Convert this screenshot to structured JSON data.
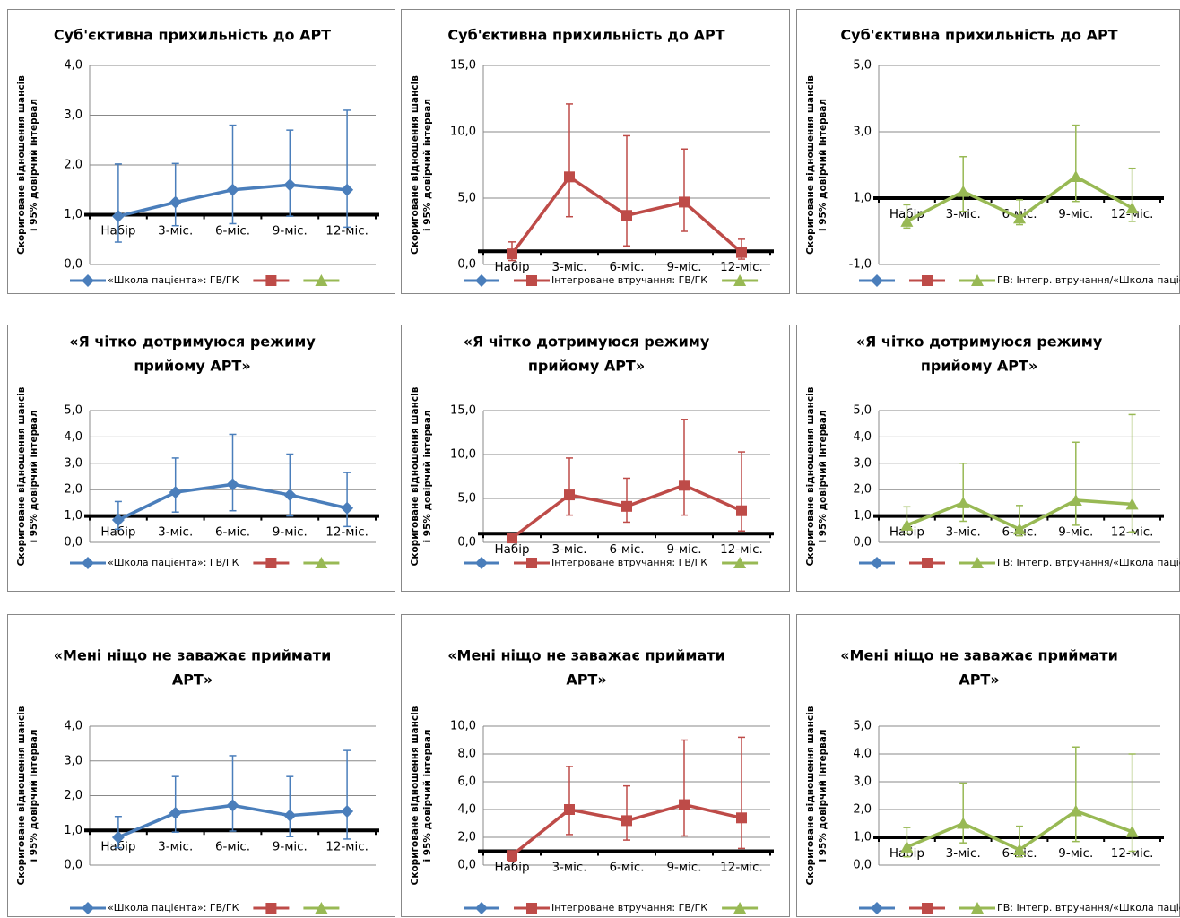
{
  "chart_data": [
    {
      "type": "line",
      "title": [
        "Суб'єктивна прихильність до АРТ"
      ],
      "y_label": [
        "Скориговане відношення шансів",
        "і 95% довірчий інтервал"
      ],
      "categories": [
        "Набір",
        "3-міс.",
        "6-міс.",
        "9-міс.",
        "12-міс."
      ],
      "ylim": [
        0,
        4
      ],
      "yticks": [
        {
          "value": 0,
          "label": "0,0"
        },
        {
          "value": 1,
          "label": "1,0"
        },
        {
          "value": 2,
          "label": "2,0"
        },
        {
          "value": 3,
          "label": "3,0"
        },
        {
          "value": 4,
          "label": "4,0"
        }
      ],
      "reference_line": 1,
      "grid": true,
      "series": [
        {
          "name": "«Школа пацієнта»: ГВ/ГК",
          "color": "#4a7ebb",
          "marker": "diamond",
          "values": [
            0.97,
            1.25,
            1.5,
            1.6,
            1.5
          ],
          "error_low": [
            0.45,
            0.78,
            0.82,
            0.97,
            0.75
          ],
          "error_high": [
            2.02,
            2.03,
            2.8,
            2.7,
            3.1
          ]
        },
        {
          "name": null,
          "color": "#be4b48",
          "marker": "square",
          "values": [
            null,
            null,
            null,
            null,
            null
          ]
        },
        {
          "name": null,
          "color": "#98b954",
          "marker": "triangle",
          "values": [
            null,
            null,
            null,
            null,
            null
          ]
        }
      ]
    },
    {
      "type": "line",
      "title": [
        "Суб'єктивна прихильність до АРТ"
      ],
      "y_label": [
        "Скориговане відношення шансів",
        "і 95% довірчий інтервал"
      ],
      "categories": [
        "Набір",
        "3-міс.",
        "6-міс.",
        "9-міс.",
        "12-міс."
      ],
      "ylim": [
        0,
        15
      ],
      "yticks": [
        {
          "value": 0,
          "label": "0,0"
        },
        {
          "value": 5,
          "label": "5,0"
        },
        {
          "value": 10,
          "label": "10,0"
        },
        {
          "value": 15,
          "label": "15,0"
        }
      ],
      "reference_line": 1,
      "grid": true,
      "series": [
        {
          "name": null,
          "color": "#4a7ebb",
          "marker": "diamond",
          "values": [
            null,
            null,
            null,
            null,
            null
          ]
        },
        {
          "name": "Інтегроване втручання: ГВ/ГК",
          "color": "#be4b48",
          "marker": "square",
          "values": [
            0.8,
            6.6,
            3.7,
            4.7,
            0.9
          ],
          "error_low": [
            0.3,
            3.6,
            1.4,
            2.5,
            0.4
          ],
          "error_high": [
            1.7,
            12.1,
            9.7,
            8.7,
            1.9
          ]
        },
        {
          "name": null,
          "color": "#98b954",
          "marker": "triangle",
          "values": [
            null,
            null,
            null,
            null,
            null
          ]
        }
      ]
    },
    {
      "type": "line",
      "title": [
        "Суб'єктивна прихильність до АРТ"
      ],
      "y_label": [
        "Скориговане відношення шансів",
        "і 95% довірчий інтервал"
      ],
      "categories": [
        "Набір",
        "3-міс.",
        "6-міс.",
        "9-міс.",
        "12-міс."
      ],
      "ylim": [
        -1,
        5
      ],
      "yticks": [
        {
          "value": -1,
          "label": "-1,0"
        },
        {
          "value": 1,
          "label": "1,0"
        },
        {
          "value": 3,
          "label": "3,0"
        },
        {
          "value": 5,
          "label": "5,0"
        }
      ],
      "reference_line": 1,
      "grid": true,
      "series": [
        {
          "name": null,
          "color": "#4a7ebb",
          "marker": "diamond",
          "values": [
            null,
            null,
            null,
            null,
            null
          ]
        },
        {
          "name": null,
          "color": "#be4b48",
          "marker": "square",
          "values": [
            null,
            null,
            null,
            null,
            null
          ]
        },
        {
          "name": "ГВ: Інтегр. втручання/«Школа пацієнта»",
          "color": "#98b954",
          "marker": "triangle",
          "values": [
            0.3,
            1.2,
            0.4,
            1.65,
            0.7
          ],
          "error_low": [
            0.1,
            0.6,
            0.2,
            0.9,
            0.3
          ],
          "error_high": [
            0.8,
            2.25,
            0.95,
            3.2,
            1.9
          ]
        }
      ]
    },
    {
      "type": "line",
      "title": [
        "«Я чітко дотримуюся режиму",
        "прийому АРТ»"
      ],
      "y_label": [
        "Скориговане відношення шансів",
        "і 95% довірчий інтервал"
      ],
      "categories": [
        "Набір",
        "3-міс.",
        "6-міс.",
        "9-міс.",
        "12-міс."
      ],
      "ylim": [
        0,
        5
      ],
      "yticks": [
        {
          "value": 0,
          "label": "0,0"
        },
        {
          "value": 1,
          "label": "1,0"
        },
        {
          "value": 2,
          "label": "2,0"
        },
        {
          "value": 3,
          "label": "3,0"
        },
        {
          "value": 4,
          "label": "4,0"
        },
        {
          "value": 5,
          "label": "5,0"
        }
      ],
      "reference_line": 1,
      "grid": true,
      "series": [
        {
          "name": "«Школа пацієнта»: ГВ/ГК",
          "color": "#4a7ebb",
          "marker": "diamond",
          "values": [
            0.85,
            1.9,
            2.2,
            1.8,
            1.3
          ],
          "error_low": [
            0.5,
            1.15,
            1.2,
            1.0,
            0.6
          ],
          "error_high": [
            1.55,
            3.2,
            4.1,
            3.35,
            2.65
          ]
        },
        {
          "name": null,
          "color": "#be4b48",
          "marker": "square",
          "values": [
            null,
            null,
            null,
            null,
            null
          ]
        },
        {
          "name": null,
          "color": "#98b954",
          "marker": "triangle",
          "values": [
            null,
            null,
            null,
            null,
            null
          ]
        }
      ]
    },
    {
      "type": "line",
      "title": [
        "«Я чітко дотримуюся режиму",
        "прийому АРТ»"
      ],
      "y_label": [
        "Скориговане відношення шансів",
        "і 95% довірчий інтервал"
      ],
      "categories": [
        "Набір",
        "3-міс.",
        "6-міс.",
        "9-міс.",
        "12-міс."
      ],
      "ylim": [
        0,
        15
      ],
      "yticks": [
        {
          "value": 0,
          "label": "0,0"
        },
        {
          "value": 5,
          "label": "5,0"
        },
        {
          "value": 10,
          "label": "10,0"
        },
        {
          "value": 15,
          "label": "15,0"
        }
      ],
      "reference_line": 1,
      "grid": true,
      "series": [
        {
          "name": null,
          "color": "#4a7ebb",
          "marker": "diamond",
          "values": [
            null,
            null,
            null,
            null,
            null
          ]
        },
        {
          "name": "Інтегроване втручання: ГВ/ГК",
          "color": "#be4b48",
          "marker": "square",
          "values": [
            0.5,
            5.4,
            4.1,
            6.5,
            3.6
          ],
          "error_low": [
            0.2,
            3.1,
            2.3,
            3.1,
            1.3
          ],
          "error_high": [
            0.9,
            9.6,
            7.3,
            14,
            10.3
          ]
        },
        {
          "name": null,
          "color": "#98b954",
          "marker": "triangle",
          "values": [
            null,
            null,
            null,
            null,
            null
          ]
        }
      ]
    },
    {
      "type": "line",
      "title": [
        "«Я чітко дотримуюся режиму",
        "прийому АРТ»"
      ],
      "y_label": [
        "Скориговане відношення шансів",
        "і 95% довірчий інтервал"
      ],
      "categories": [
        "Набір",
        "3-міс.",
        "6-міс.",
        "9-міс.",
        "12-міс."
      ],
      "ylim": [
        0,
        5
      ],
      "yticks": [
        {
          "value": 0,
          "label": "0,0"
        },
        {
          "value": 1,
          "label": "1,0"
        },
        {
          "value": 2,
          "label": "2,0"
        },
        {
          "value": 3,
          "label": "3,0"
        },
        {
          "value": 4,
          "label": "4,0"
        },
        {
          "value": 5,
          "label": "5,0"
        }
      ],
      "reference_line": 1,
      "grid": true,
      "series": [
        {
          "name": null,
          "color": "#4a7ebb",
          "marker": "diamond",
          "values": [
            null,
            null,
            null,
            null,
            null
          ]
        },
        {
          "name": null,
          "color": "#be4b48",
          "marker": "square",
          "values": [
            null,
            null,
            null,
            null,
            null
          ]
        },
        {
          "name": "ГВ: Інтегр. втручання/«Школа пацієнта»",
          "color": "#98b954",
          "marker": "triangle",
          "values": [
            0.65,
            1.5,
            0.5,
            1.6,
            1.45
          ],
          "error_low": [
            0.35,
            0.8,
            0.25,
            0.65,
            0.4
          ],
          "error_high": [
            1.35,
            3.0,
            1.4,
            3.8,
            4.85
          ]
        }
      ]
    },
    {
      "type": "line",
      "title": [
        "«Мені ніщо не заважає приймати",
        "АРТ»"
      ],
      "y_label": [
        "Скориговане відношення шансів",
        "і 95% довірчий інтервал"
      ],
      "categories": [
        "Набір",
        "3-міс.",
        "6-міс.",
        "9-міс.",
        "12-міс."
      ],
      "ylim": [
        0,
        4
      ],
      "yticks": [
        {
          "value": 0,
          "label": "0,0"
        },
        {
          "value": 1,
          "label": "1,0"
        },
        {
          "value": 2,
          "label": "2,0"
        },
        {
          "value": 3,
          "label": "3,0"
        },
        {
          "value": 4,
          "label": "4,0"
        }
      ],
      "reference_line": 1,
      "grid": true,
      "series": [
        {
          "name": "«Школа пацієнта»: ГВ/ГК",
          "color": "#4a7ebb",
          "marker": "diamond",
          "values": [
            0.8,
            1.5,
            1.72,
            1.43,
            1.55
          ],
          "error_low": [
            0.5,
            0.95,
            0.98,
            0.82,
            0.75
          ],
          "error_high": [
            1.4,
            2.55,
            3.15,
            2.55,
            3.3
          ]
        },
        {
          "name": null,
          "color": "#be4b48",
          "marker": "square",
          "values": [
            null,
            null,
            null,
            null,
            null
          ]
        },
        {
          "name": null,
          "color": "#98b954",
          "marker": "triangle",
          "values": [
            null,
            null,
            null,
            null,
            null
          ]
        }
      ]
    },
    {
      "type": "line",
      "title": [
        "«Мені ніщо не заважає приймати",
        "АРТ»"
      ],
      "y_label": [
        "Скориговане  відношення шансів",
        "і 95% довірчий інтервал"
      ],
      "categories": [
        "Набір",
        "3-міс.",
        "6-міс.",
        "9-міс.",
        "12-міс."
      ],
      "ylim": [
        0,
        10
      ],
      "yticks": [
        {
          "value": 0,
          "label": "0,0"
        },
        {
          "value": 2,
          "label": "2,0"
        },
        {
          "value": 4,
          "label": "4,0"
        },
        {
          "value": 6,
          "label": "6,0"
        },
        {
          "value": 8,
          "label": "8,0"
        },
        {
          "value": 10,
          "label": "10,0"
        }
      ],
      "reference_line": 1,
      "grid": true,
      "series": [
        {
          "name": null,
          "color": "#4a7ebb",
          "marker": "diamond",
          "values": [
            null,
            null,
            null,
            null,
            null
          ]
        },
        {
          "name": "Інтегроване втручання: ГВ/ГК",
          "color": "#be4b48",
          "marker": "square",
          "values": [
            0.7,
            4.0,
            3.2,
            4.35,
            3.4
          ],
          "error_low": [
            0.3,
            2.2,
            1.8,
            2.1,
            1.2
          ],
          "error_high": [
            1.0,
            7.1,
            5.7,
            9.0,
            9.2
          ]
        },
        {
          "name": null,
          "color": "#98b954",
          "marker": "triangle",
          "values": [
            null,
            null,
            null,
            null,
            null
          ]
        }
      ]
    },
    {
      "type": "line",
      "title": [
        "«Мені ніщо не заважає приймати",
        "АРТ»"
      ],
      "y_label": [
        "Скориговане відношення шансів",
        "і 95% довірчий інтервал"
      ],
      "categories": [
        "Набір",
        "3-міс.",
        "6-міс.",
        "9-міс.",
        "12-міс."
      ],
      "ylim": [
        0,
        5
      ],
      "yticks": [
        {
          "value": 0,
          "label": "0,0"
        },
        {
          "value": 1,
          "label": "1,0"
        },
        {
          "value": 2,
          "label": "2,0"
        },
        {
          "value": 3,
          "label": "3,0"
        },
        {
          "value": 4,
          "label": "4,0"
        },
        {
          "value": 5,
          "label": "5,0"
        }
      ],
      "reference_line": 1,
      "grid": true,
      "series": [
        {
          "name": null,
          "color": "#4a7ebb",
          "marker": "diamond",
          "values": [
            null,
            null,
            null,
            null,
            null
          ]
        },
        {
          "name": null,
          "color": "#be4b48",
          "marker": "square",
          "values": [
            null,
            null,
            null,
            null,
            null
          ]
        },
        {
          "name": "ГВ: Інтегр. втручання/«Школа пацієнта»",
          "color": "#98b954",
          "marker": "triangle",
          "values": [
            0.65,
            1.5,
            0.55,
            1.95,
            1.2
          ],
          "error_low": [
            0.3,
            0.8,
            0.3,
            0.85,
            0.5
          ],
          "error_high": [
            1.35,
            2.95,
            1.4,
            4.25,
            4.0
          ]
        }
      ]
    }
  ]
}
